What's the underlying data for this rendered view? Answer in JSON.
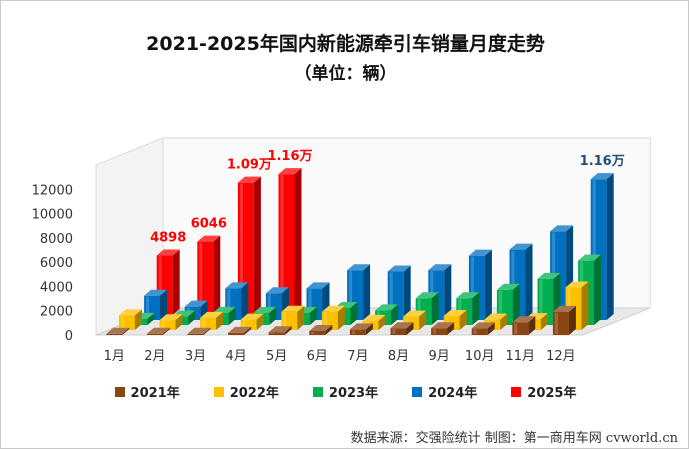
{
  "title": "2021-2025年国内新能源牵引车销量月度走势",
  "subtitle": "（单位：辆）",
  "source": "数据来源：交强险统计 制图：第一商用车网 cvworld.cn",
  "chart_data": {
    "type": "bar",
    "categories": [
      "1月",
      "2月",
      "3月",
      "4月",
      "5月",
      "6月",
      "7月",
      "8月",
      "9月",
      "10月",
      "11月",
      "12月"
    ],
    "y_ticks": [
      "0",
      "2000",
      "4000",
      "6000",
      "8000",
      "10000",
      "12000"
    ],
    "ylim": [
      0,
      14000
    ],
    "series": [
      {
        "name": "2021年",
        "color": "#8b4513",
        "values": [
          10,
          30,
          60,
          170,
          230,
          330,
          460,
          560,
          560,
          550,
          1050,
          1900
        ]
      },
      {
        "name": "2022年",
        "color": "#ffc000",
        "values": [
          1200,
          800,
          1000,
          850,
          1500,
          1500,
          750,
          1100,
          1150,
          850,
          900,
          3500
        ]
      },
      {
        "name": "2023年",
        "color": "#00b050",
        "values": [
          500,
          700,
          1000,
          1000,
          1000,
          1400,
          1200,
          2200,
          2200,
          2900,
          3800,
          5300
        ]
      },
      {
        "name": "2024年",
        "color": "#0070c0",
        "values": [
          2000,
          1100,
          2600,
          2200,
          2600,
          4100,
          4000,
          4100,
          5300,
          5800,
          7300,
          11600
        ]
      },
      {
        "name": "2025年",
        "color": "#ff0000",
        "values": [
          4898,
          6046,
          10900,
          11600,
          null,
          null,
          null,
          null,
          null,
          null,
          null,
          null
        ]
      }
    ],
    "data_labels": [
      {
        "series": "2025年",
        "index": 0,
        "text": "4898",
        "color": "#ff0000"
      },
      {
        "series": "2025年",
        "index": 1,
        "text": "6046",
        "color": "#ff0000"
      },
      {
        "series": "2025年",
        "index": 2,
        "text": "1.09万",
        "color": "#ff0000"
      },
      {
        "series": "2025年",
        "index": 3,
        "text": "1.16万",
        "color": "#ff0000"
      },
      {
        "series": "2024年",
        "index": 11,
        "text": "1.16万",
        "color": "#1f4e79"
      }
    ],
    "legend_position": "bottom",
    "grid": false
  }
}
